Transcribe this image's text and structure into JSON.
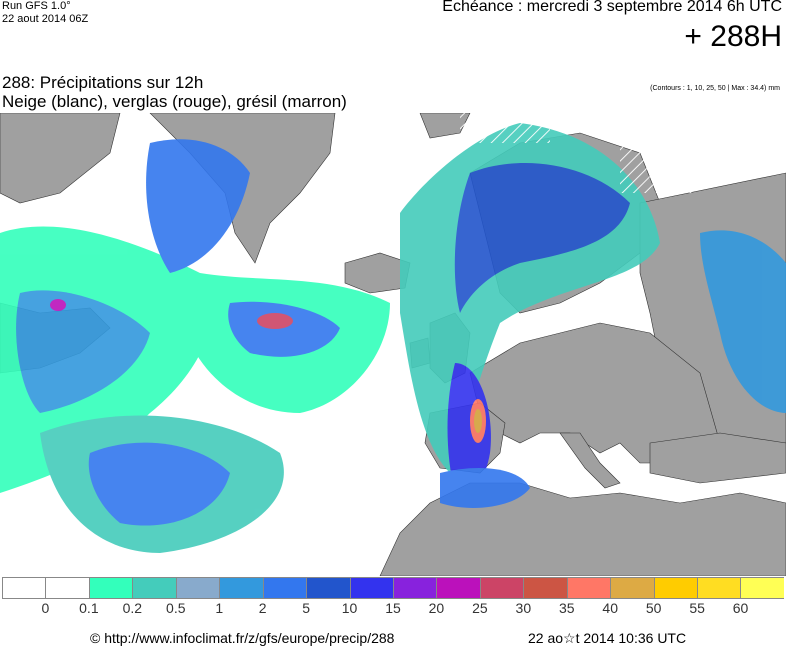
{
  "header": {
    "run_label": "Run GFS 1.0°",
    "run_date": "22 aout 2014 06Z",
    "echeance": "Echéance : mercredi 3 septembre 2014 6h UTC",
    "horizon": "+ 288H"
  },
  "map": {
    "title": "288: Précipitations sur 12h",
    "subtitle": "Neige (blanc), verglas (rouge), grésil (marron)",
    "contours_note": "(Contours : 1, 10, 25, 50 | Max : 34.4) mm",
    "land_color": "#a0a0a0",
    "sea_color": "#ffffff"
  },
  "legend": {
    "labels": [
      "0",
      "0.1",
      "0.2",
      "0.5",
      "1",
      "2",
      "5",
      "10",
      "15",
      "20",
      "25",
      "30",
      "35",
      "40",
      "50",
      "55",
      "60"
    ],
    "colors": [
      "#ffffff",
      "#ffffff",
      "#33ffbb",
      "#44ccbb",
      "#88aacc",
      "#3399dd",
      "#3377ee",
      "#2255cc",
      "#3333ee",
      "#8822dd",
      "#bb11bb",
      "#cc4466",
      "#cc5544",
      "#ff7766",
      "#ddaa44",
      "#ffcc00",
      "#ffdd22",
      "#ffff55"
    ]
  },
  "footer": {
    "credit": "© http://www.infoclimat.fr/z/gfs/europe/precip/288",
    "timestamp": "22 ao☆t 2014 10:36 UTC"
  }
}
